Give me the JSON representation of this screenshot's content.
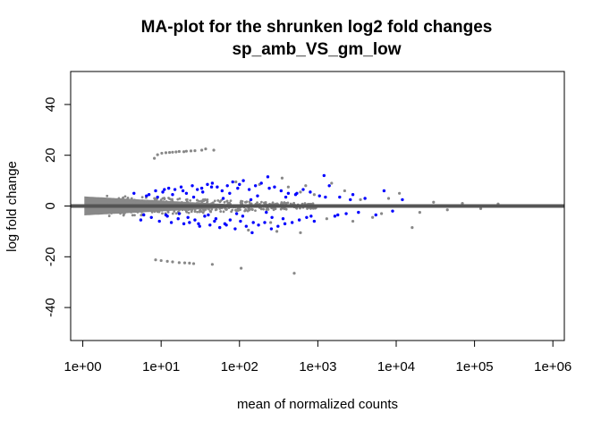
{
  "chart_data": {
    "type": "scatter",
    "title": "MA-plot for the shrunken log2 fold changes",
    "subtitle": "sp_amb_VS_gm_low",
    "xlabel": "mean of normalized counts",
    "ylabel": "log fold change",
    "xscale": "log10",
    "xlim": [
      0.7,
      1400000
    ],
    "ylim": [
      -53,
      53
    ],
    "x_ticks": [
      "1e+00",
      "1e+01",
      "1e+02",
      "1e+03",
      "1e+04",
      "1e+05",
      "1e+06"
    ],
    "y_ticks": [
      "-40",
      "-20",
      "0",
      "20",
      "40"
    ],
    "grid": false,
    "legend": "none",
    "colors": {
      "not_significant": "#888888",
      "significant": "#0000ff",
      "reference_line": "#555555"
    },
    "reference_line": {
      "y": 0
    },
    "series": [
      {
        "values": [
          [
            8.2,
            18.8
          ],
          [
            9.0,
            20.2
          ],
          [
            10.2,
            20.8
          ],
          [
            11.5,
            21.0
          ],
          [
            12.8,
            21.1
          ],
          [
            14.0,
            21.2
          ],
          [
            15.5,
            21.3
          ],
          [
            17.0,
            21.5
          ],
          [
            19.5,
            21.4
          ],
          [
            21.0,
            21.6
          ],
          [
            24.0,
            21.7
          ],
          [
            27.0,
            21.8
          ],
          [
            33.0,
            22.0
          ],
          [
            37.0,
            22.5
          ],
          [
            47.0,
            22.0
          ],
          [
            8.5,
            -21.2
          ],
          [
            10.0,
            -21.5
          ],
          [
            12.0,
            -21.8
          ],
          [
            14.0,
            -22.0
          ],
          [
            17.0,
            -22.3
          ],
          [
            20.0,
            -22.4
          ],
          [
            23.0,
            -22.5
          ],
          [
            26.0,
            -22.7
          ],
          [
            45.0,
            -23.0
          ],
          [
            105.0,
            -24.5
          ],
          [
            500.0,
            -26.5
          ],
          [
            1500.0,
            9.0
          ],
          [
            2200.0,
            6.0
          ],
          [
            700.0,
            8.0
          ],
          [
            350.0,
            11.0
          ],
          [
            600.0,
            5.5
          ],
          [
            420.0,
            7.5
          ],
          [
            900.0,
            4.5
          ],
          [
            1300.0,
            -5.0
          ],
          [
            2800.0,
            -6.0
          ],
          [
            5000.0,
            -4.5
          ],
          [
            11000.0,
            5.0
          ],
          [
            16000.0,
            -8.5
          ],
          [
            8000.0,
            3.0
          ],
          [
            20000.0,
            -2.5
          ],
          [
            30000.0,
            1.5
          ],
          [
            45000.0,
            -1.5
          ],
          [
            70000.0,
            1.0
          ],
          [
            120000.0,
            -1.0
          ],
          [
            200000.0,
            0.8
          ],
          [
            250.0,
            -6.5
          ],
          [
            180.0,
            8.5
          ],
          [
            130.0,
            -9.5
          ],
          [
            90.0,
            9.5
          ],
          [
            300.0,
            -10.0
          ],
          [
            600.0,
            -10.5
          ],
          [
            3500.0,
            2.5
          ],
          [
            6500.0,
            -3.0
          ]
        ]
      },
      {
        "values": [
          [
            4.5,
            5.0
          ],
          [
            5.5,
            -5.5
          ],
          [
            6.5,
            4.0
          ],
          [
            7.5,
            -4.5
          ],
          [
            8.5,
            6.0
          ],
          [
            9.5,
            -6.0
          ],
          [
            10.5,
            5.5
          ],
          [
            11.5,
            -3.5
          ],
          [
            12.5,
            7.0
          ],
          [
            13.5,
            -6.5
          ],
          [
            15.0,
            6.5
          ],
          [
            16.5,
            -5.0
          ],
          [
            18.0,
            7.5
          ],
          [
            19.5,
            -7.0
          ],
          [
            21.0,
            5.0
          ],
          [
            23.0,
            -6.5
          ],
          [
            25.0,
            8.0
          ],
          [
            27.0,
            -5.5
          ],
          [
            29.0,
            6.5
          ],
          [
            31.0,
            -8.0
          ],
          [
            33.0,
            7.0
          ],
          [
            36.0,
            -4.0
          ],
          [
            39.0,
            8.5
          ],
          [
            42.0,
            -7.5
          ],
          [
            45.0,
            9.0
          ],
          [
            48.0,
            -6.0
          ],
          [
            52.0,
            7.5
          ],
          [
            56.0,
            -8.5
          ],
          [
            60.0,
            6.0
          ],
          [
            65.0,
            -7.0
          ],
          [
            70.0,
            8.0
          ],
          [
            76.0,
            -5.5
          ],
          [
            82.0,
            9.5
          ],
          [
            88.0,
            -9.0
          ],
          [
            95.0,
            7.0
          ],
          [
            103.0,
            -6.0
          ],
          [
            112.0,
            10.0
          ],
          [
            122.0,
            -8.0
          ],
          [
            133.0,
            6.5
          ],
          [
            145.0,
            -10.5
          ],
          [
            160.0,
            8.0
          ],
          [
            175.0,
            -7.5
          ],
          [
            190.0,
            9.0
          ],
          [
            210.0,
            -6.5
          ],
          [
            230.0,
            11.5
          ],
          [
            255.0,
            -9.0
          ],
          [
            280.0,
            7.5
          ],
          [
            310.0,
            -8.0
          ],
          [
            340.0,
            6.0
          ],
          [
            380.0,
            -7.0
          ],
          [
            420.0,
            5.0
          ],
          [
            470.0,
            -6.5
          ],
          [
            520.0,
            4.5
          ],
          [
            580.0,
            -5.5
          ],
          [
            650.0,
            6.5
          ],
          [
            720.0,
            -4.5
          ],
          [
            800.0,
            5.5
          ],
          [
            900.0,
            -6.0
          ],
          [
            1050.0,
            4.0
          ],
          [
            1200.0,
            12.0
          ],
          [
            1400.0,
            8.0
          ],
          [
            1650.0,
            -4.0
          ],
          [
            1900.0,
            3.5
          ],
          [
            2300.0,
            -3.0
          ],
          [
            2800.0,
            4.5
          ],
          [
            3300.0,
            -2.5
          ],
          [
            4000.0,
            3.0
          ],
          [
            5500.0,
            -3.5
          ],
          [
            7000.0,
            6.0
          ],
          [
            9000.0,
            -2.0
          ],
          [
            12000.0,
            2.5
          ],
          [
            14.0,
            4.5
          ],
          [
            22.0,
            -4.5
          ],
          [
            34.0,
            5.5
          ],
          [
            50.0,
            -5.0
          ],
          [
            75.0,
            5.0
          ],
          [
            110.0,
            -4.0
          ],
          [
            170.0,
            4.0
          ],
          [
            260.0,
            -4.5
          ],
          [
            390.0,
            3.5
          ],
          [
            9.0,
            3.5
          ],
          [
            12.0,
            -4.0
          ],
          [
            17.0,
            -3.0
          ],
          [
            26.0,
            3.5
          ],
          [
            40.0,
            -3.5
          ],
          [
            62.0,
            3.0
          ],
          [
            92.0,
            -3.0
          ],
          [
            140.0,
            2.5
          ],
          [
            220.0,
            -2.5
          ],
          [
            7.0,
            4.5
          ],
          [
            6.0,
            -3.5
          ],
          [
            11.0,
            6.5
          ],
          [
            19.0,
            6.0
          ],
          [
            30.0,
            -7.0
          ],
          [
            44.0,
            7.5
          ],
          [
            68.0,
            -7.5
          ],
          [
            100.0,
            8.5
          ],
          [
            150.0,
            -6.5
          ],
          [
            240.0,
            7.0
          ],
          [
            360.0,
            -5.0
          ],
          [
            540.0,
            5.0
          ],
          [
            820.0,
            -4.0
          ],
          [
            1250.0,
            3.5
          ],
          [
            1800.0,
            -3.5
          ],
          [
            2600.0,
            2.5
          ]
        ]
      }
    ]
  }
}
